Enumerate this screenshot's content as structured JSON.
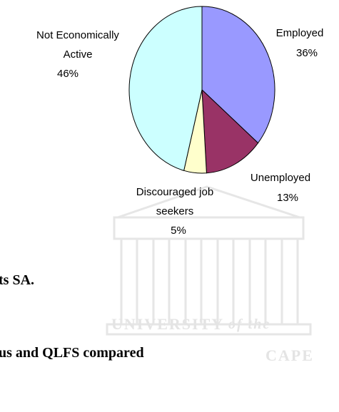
{
  "chart_data": {
    "type": "pie",
    "categories": [
      "Employed",
      "Unemployed",
      "Discouraged job seekers",
      "Not Economically Active"
    ],
    "values": [
      36,
      13,
      5,
      46
    ],
    "value_labels": [
      "36%",
      "13%",
      "5%",
      "46%"
    ],
    "colors": [
      "#9999ff",
      "#993366",
      "#ffffcc",
      "#ccffff"
    ]
  },
  "document": {
    "lines": [
      "ts SA.",
      "us and QLFS compared"
    ],
    "watermark": [
      "UNIVERSITY",
      "of the",
      "CAPE"
    ]
  }
}
